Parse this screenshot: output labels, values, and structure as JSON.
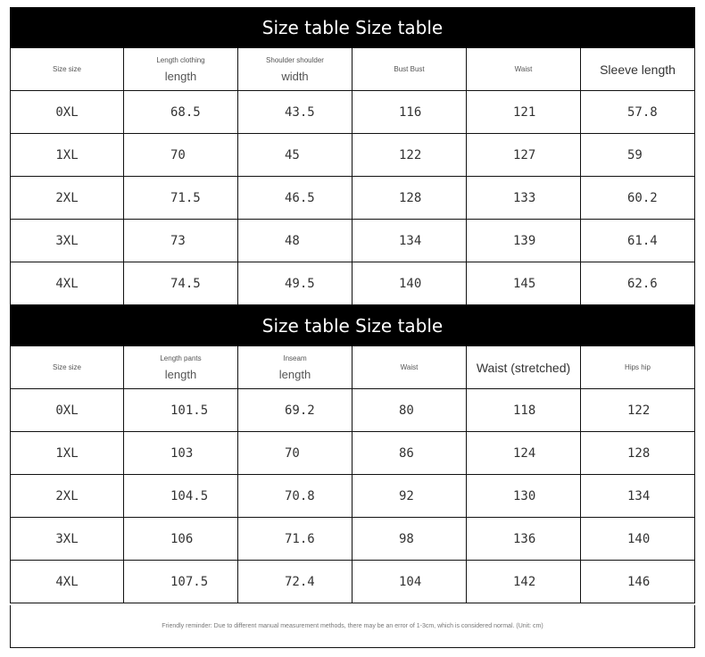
{
  "tables": [
    {
      "title": "Size table Size table",
      "headers": [
        {
          "small": "Size size",
          "large": ""
        },
        {
          "small": "Length clothing",
          "large": "length"
        },
        {
          "small": "Shoulder shoulder",
          "large": "width"
        },
        {
          "small": "Bust Bust",
          "large": ""
        },
        {
          "small": "Waist",
          "large": ""
        },
        {
          "small": "",
          "large": "Sleeve length"
        }
      ],
      "rows": [
        [
          "0XL",
          "68.5",
          "43.5",
          "116",
          "121",
          "57.8"
        ],
        [
          "1XL",
          "70",
          "45",
          "122",
          "127",
          "59"
        ],
        [
          "2XL",
          "71.5",
          "46.5",
          "128",
          "133",
          "60.2"
        ],
        [
          "3XL",
          "73",
          "48",
          "134",
          "139",
          "61.4"
        ],
        [
          "4XL",
          "74.5",
          "49.5",
          "140",
          "145",
          "62.6"
        ]
      ]
    },
    {
      "title": "Size table Size table",
      "headers": [
        {
          "small": "Size size",
          "large": ""
        },
        {
          "small": "Length pants",
          "large": "length"
        },
        {
          "small": "Inseam",
          "large": "length"
        },
        {
          "small": "Waist",
          "large": ""
        },
        {
          "small": "",
          "large": "Waist (stretched)"
        },
        {
          "small": "Hips hip",
          "large": ""
        }
      ],
      "rows": [
        [
          "0XL",
          "101.5",
          "69.2",
          "80",
          "118",
          "122"
        ],
        [
          "1XL",
          "103",
          "70",
          "86",
          "124",
          "128"
        ],
        [
          "2XL",
          "104.5",
          "70.8",
          "92",
          "130",
          "134"
        ],
        [
          "3XL",
          "106",
          "71.6",
          "98",
          "136",
          "140"
        ],
        [
          "4XL",
          "107.5",
          "72.4",
          "104",
          "142",
          "146"
        ]
      ]
    }
  ],
  "footer_note": "Friendly reminder: Due to different manual measurement methods, there may be an error of 1-3cm, which is considered normal. (Unit: cm)"
}
